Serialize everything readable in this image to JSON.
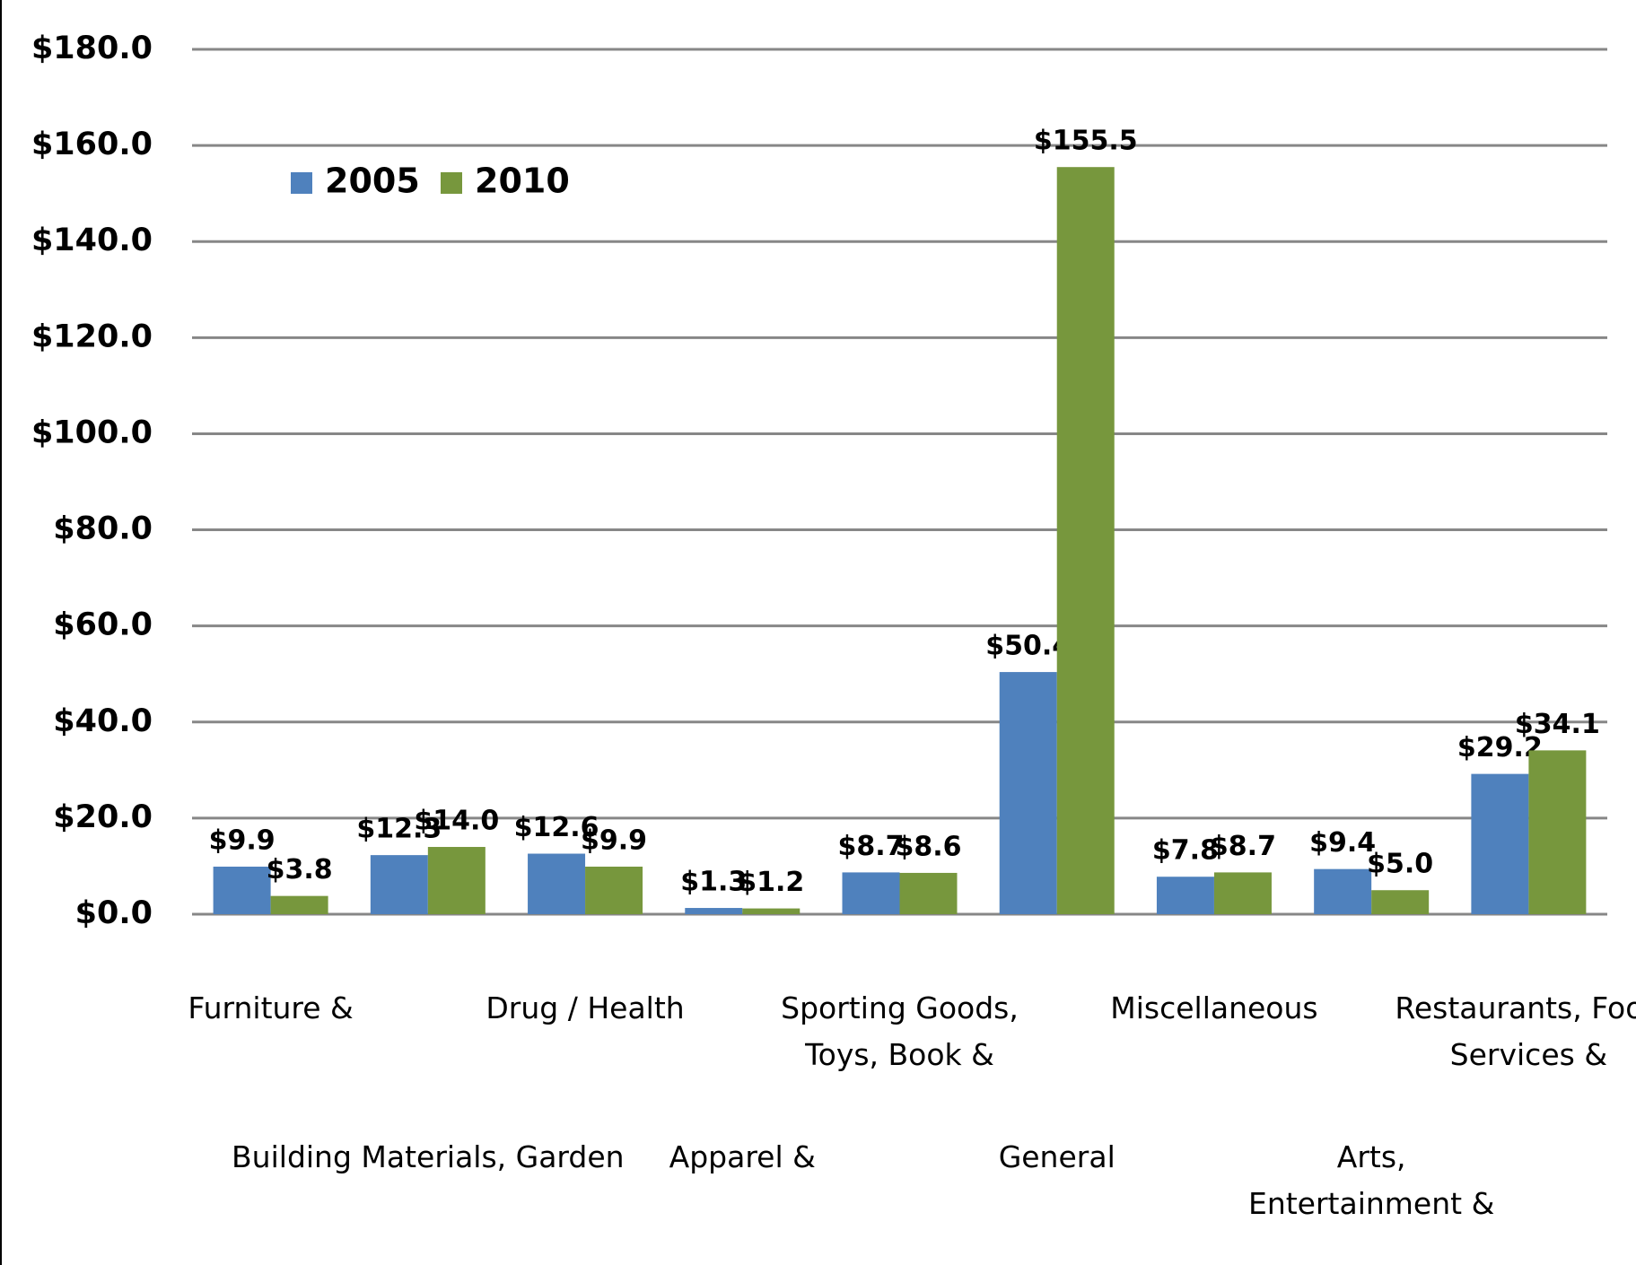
{
  "chart_data": {
    "type": "bar",
    "categories": [
      "Furniture &",
      "Building Materials, Garden",
      "Drug / Health",
      "Apparel &",
      "Sporting Goods, Toys, Book &",
      "General",
      "Miscellaneous",
      "Arts, Entertainment &",
      "Restaurants, Food Services &"
    ],
    "series": [
      {
        "name": "2005",
        "color": "#4f81bd",
        "values": [
          9.9,
          12.3,
          12.6,
          1.3,
          8.7,
          50.4,
          7.8,
          9.4,
          29.2
        ],
        "value_labels": [
          "$9.9",
          "$12.3",
          "$12.6",
          "$1.3",
          "$8.7",
          "$50.4",
          "$7.8",
          "$9.4",
          "$29.2"
        ]
      },
      {
        "name": "2010",
        "color": "#77973d",
        "values": [
          3.8,
          14.0,
          9.9,
          1.2,
          8.6,
          155.5,
          8.7,
          5.0,
          34.1
        ],
        "value_labels": [
          "$3.8",
          "$14.0",
          "$9.9",
          "$1.2",
          "$8.6",
          "$155.5",
          "$8.7",
          "$5.0",
          "$34.1"
        ]
      }
    ],
    "ylim": [
      0,
      180
    ],
    "yticks": [
      {
        "value": 0,
        "label": "$0.0"
      },
      {
        "value": 20,
        "label": "$20.0"
      },
      {
        "value": 40,
        "label": "$40.0"
      },
      {
        "value": 60,
        "label": "$60.0"
      },
      {
        "value": 80,
        "label": "$80.0"
      },
      {
        "value": 100,
        "label": "$100.0"
      },
      {
        "value": 120,
        "label": "$120.0"
      },
      {
        "value": 140,
        "label": "$140.0"
      },
      {
        "value": 160,
        "label": "$160.0"
      },
      {
        "value": 180,
        "label": "$180.0"
      }
    ],
    "grid": true,
    "legend": "top-left"
  }
}
